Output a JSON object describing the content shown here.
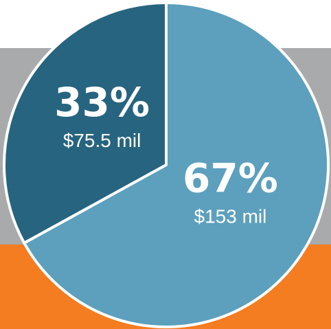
{
  "chart_data": {
    "type": "pie",
    "values": [
      67,
      33
    ],
    "value_labels": [
      "67%",
      "33%"
    ],
    "amount_labels": [
      "$153 mil",
      "$75.5 mil"
    ],
    "colors": [
      "#5ca0bd",
      "#27647f"
    ]
  }
}
